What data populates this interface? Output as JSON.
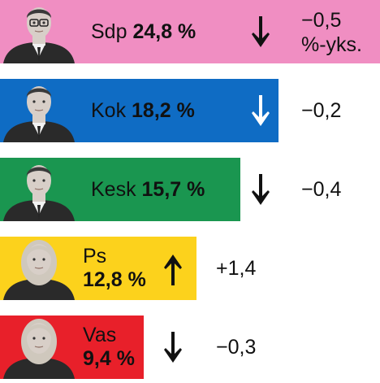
{
  "chart_data": {
    "type": "bar",
    "orientation": "horizontal",
    "title": "",
    "categories": [
      "Sdp",
      "Kok",
      "Kesk",
      "Ps",
      "Vas"
    ],
    "values": [
      24.8,
      18.2,
      15.7,
      12.8,
      9.4
    ],
    "value_labels": [
      "24,8 %",
      "18,2 %",
      "15,7 %",
      "12,8 %",
      "9,4 %"
    ],
    "changes": [
      -0.5,
      -0.2,
      -0.4,
      1.4,
      -0.3
    ],
    "change_labels": [
      "−0,5\n%-yks.",
      "−0,2",
      "−0,4",
      "+1,4",
      "−0,3"
    ],
    "directions": [
      "down",
      "down",
      "down",
      "up",
      "down"
    ],
    "colors": [
      "#f08ec2",
      "#0f6cc4",
      "#1a9650",
      "#fcd21c",
      "#e8202a"
    ],
    "arrow_colors": [
      "#111111",
      "#ffffff",
      "#111111",
      "#111111",
      "#111111"
    ],
    "xlim": [
      0,
      24.8
    ]
  }
}
